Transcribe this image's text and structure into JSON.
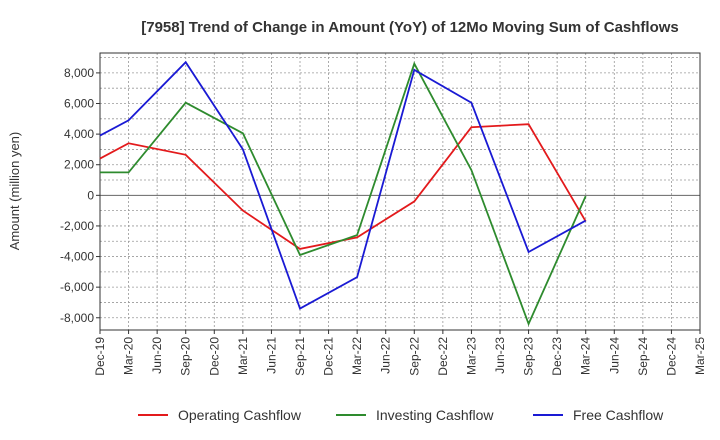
{
  "chart_data": {
    "type": "line",
    "title": "[7958]  Trend of Change in Amount (YoY) of 12Mo Moving Sum of Cashflows",
    "xlabel": "",
    "ylabel": "Amount (million yen)",
    "ylim": [
      -8800,
      9300
    ],
    "yticks": [
      8000,
      6000,
      4000,
      2000,
      0,
      -2000,
      -4000,
      -6000,
      -8000
    ],
    "ytick_labels": [
      "8,000",
      "6,000",
      "4,000",
      "2,000",
      "0",
      "-2,000",
      "-4,000",
      "-6,000",
      "-8,000"
    ],
    "categories": [
      "Dec-19",
      "Mar-20",
      "Jun-20",
      "Sep-20",
      "Dec-20",
      "Mar-21",
      "Jun-21",
      "Sep-21",
      "Dec-21",
      "Mar-22",
      "Jun-22",
      "Sep-22",
      "Dec-22",
      "Mar-23",
      "Jun-23",
      "Sep-23",
      "Dec-23",
      "Mar-24",
      "Jun-24",
      "Sep-24",
      "Dec-24",
      "Mar-25"
    ],
    "grid": true,
    "legend_position": "bottom",
    "series": [
      {
        "name": "Operating Cashflow",
        "color": "#e31a1c",
        "values": [
          2400,
          3400,
          null,
          2650,
          null,
          -1000,
          null,
          -3500,
          null,
          -2750,
          null,
          -400,
          null,
          4450,
          null,
          4650,
          null,
          -1700,
          null,
          null,
          null,
          null
        ]
      },
      {
        "name": "Investing Cashflow",
        "color": "#2e8b2e",
        "values": [
          1500,
          1500,
          null,
          6050,
          null,
          4050,
          null,
          -3900,
          null,
          -2600,
          null,
          8600,
          null,
          1650,
          null,
          -8400,
          null,
          -50,
          null,
          null,
          null,
          null
        ]
      },
      {
        "name": "Free Cashflow",
        "color": "#1a1ad4",
        "values": [
          3900,
          4900,
          null,
          8700,
          null,
          3000,
          null,
          -7400,
          null,
          -5350,
          null,
          8200,
          null,
          6050,
          null,
          -3700,
          null,
          -1650,
          null,
          null,
          null,
          null
        ]
      }
    ]
  }
}
